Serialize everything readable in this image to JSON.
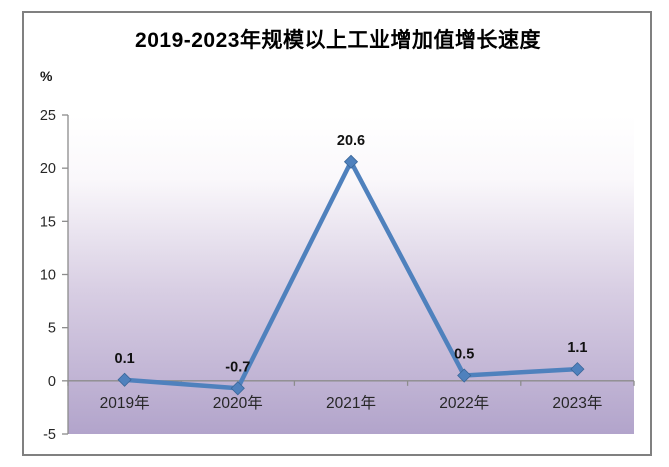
{
  "figure": {
    "background": "#ffffff",
    "frame_border_color": "#808080"
  },
  "chart_data": {
    "type": "line",
    "title": "2019-2023年规模以上工业增加值增长速度",
    "unit_label": "%",
    "xlabel": "",
    "ylabel": "%",
    "categories": [
      "2019年",
      "2020年",
      "2021年",
      "2022年",
      "2023年"
    ],
    "series": [
      {
        "name": "规模以上工业增加值增长速度",
        "values": [
          0.1,
          -0.7,
          20.6,
          0.5,
          1.1
        ]
      }
    ],
    "value_labels": [
      "0.1",
      "-0.7",
      "20.6",
      "0.5",
      "1.1"
    ],
    "ylim": [
      -5,
      25
    ],
    "yticks": [
      25,
      20,
      15,
      10,
      5,
      0,
      -5
    ],
    "grid": false,
    "legend": "none",
    "line_color": "#4F81BD",
    "marker": "diamond",
    "marker_edge_color": "#3A6698",
    "plot_bg_top": "#ffffff",
    "plot_bg_bottom": "#b2a4cb",
    "axis_color": "#8c8c8c",
    "value_label_color": "#111111",
    "tick_label_color": "#262626"
  }
}
